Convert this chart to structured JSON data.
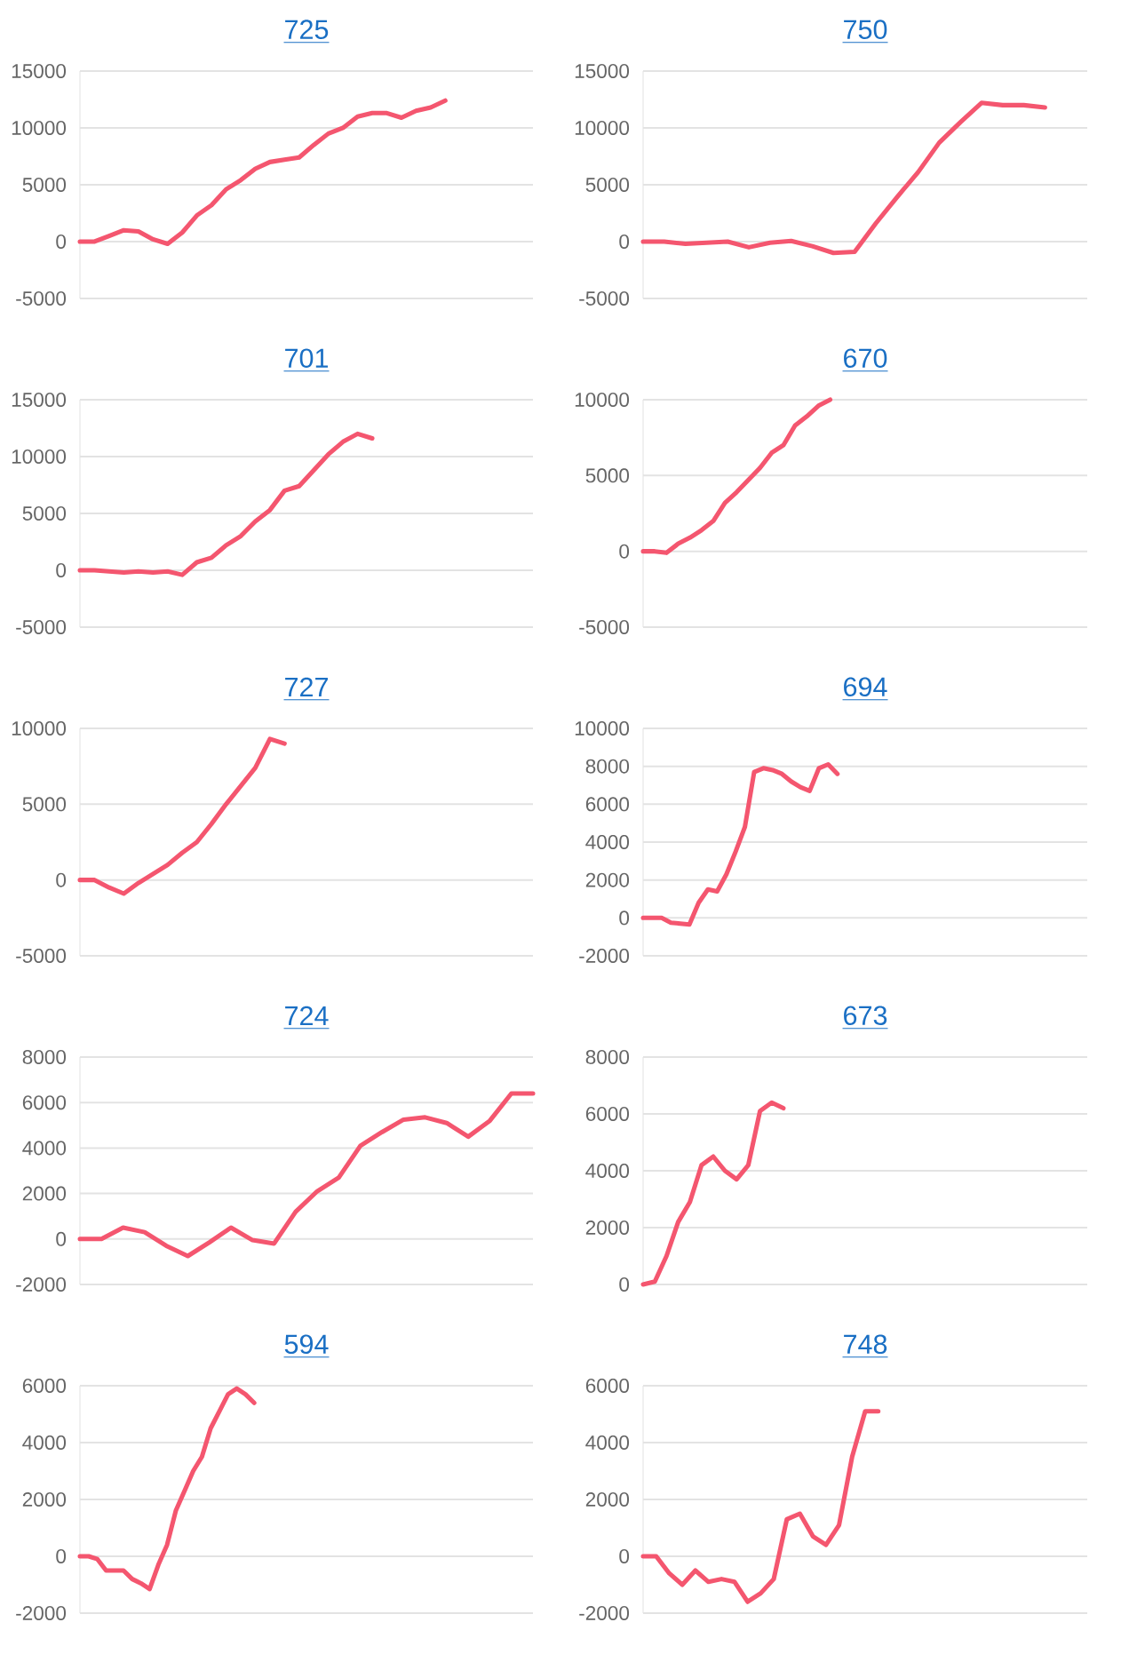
{
  "chart_data": [
    {
      "type": "line",
      "title": "725",
      "color": "#f4566f",
      "grid": "y",
      "tick_labels": "y",
      "ylim": [
        -5000,
        15000
      ],
      "yticks": [
        -5000,
        0,
        5000,
        10000,
        15000
      ],
      "categories": [
        null,
        null,
        null,
        null,
        null,
        null,
        null,
        null,
        null,
        null,
        null,
        null,
        null,
        null,
        null,
        null,
        null,
        null,
        null,
        null,
        null,
        null,
        null,
        null,
        null,
        null,
        null,
        null,
        null,
        null,
        null,
        null
      ],
      "values": [
        0,
        0,
        500,
        1000,
        900,
        200,
        -200,
        800,
        2300,
        3200,
        4600,
        5400,
        6400,
        7000,
        7200,
        7400,
        8500,
        9500,
        10000,
        11000,
        11300,
        11300,
        10900,
        11500,
        11800,
        12400,
        null,
        null,
        null,
        null,
        null,
        null
      ]
    },
    {
      "type": "line",
      "title": "750",
      "color": "#f4566f",
      "grid": "y",
      "tick_labels": "y",
      "ylim": [
        -5000,
        15000
      ],
      "yticks": [
        -5000,
        0,
        5000,
        10000,
        15000
      ],
      "categories": [
        null,
        null,
        null,
        null,
        null,
        null,
        null,
        null,
        null,
        null,
        null,
        null,
        null,
        null,
        null,
        null,
        null,
        null,
        null,
        null,
        null,
        null
      ],
      "values": [
        0,
        0,
        -200,
        -100,
        0,
        -500,
        -100,
        50,
        -400,
        -1000,
        -900,
        1600,
        3900,
        6100,
        8700,
        10500,
        12200,
        12000,
        12000,
        11800,
        null,
        null
      ]
    },
    {
      "type": "line",
      "title": "701",
      "color": "#f4566f",
      "grid": "y",
      "tick_labels": "y",
      "ylim": [
        -5000,
        15000
      ],
      "yticks": [
        -5000,
        0,
        5000,
        10000,
        15000
      ],
      "categories": [
        null,
        null,
        null,
        null,
        null,
        null,
        null,
        null,
        null,
        null,
        null,
        null,
        null,
        null,
        null,
        null,
        null,
        null,
        null,
        null,
        null,
        null,
        null,
        null,
        null,
        null,
        null,
        null,
        null,
        null,
        null,
        null
      ],
      "values": [
        0,
        0,
        -100,
        -200,
        -100,
        -200,
        -100,
        -400,
        700,
        1100,
        2200,
        3000,
        4300,
        5300,
        7000,
        7400,
        8800,
        10200,
        11300,
        12000,
        11600,
        null,
        null,
        null,
        null,
        null,
        null,
        null,
        null,
        null,
        null,
        null
      ]
    },
    {
      "type": "line",
      "title": "670",
      "color": "#f4566f",
      "grid": "y",
      "tick_labels": "y",
      "ylim": [
        -5000,
        10000
      ],
      "yticks": [
        -5000,
        0,
        5000,
        10000
      ],
      "categories": [
        null,
        null,
        null,
        null,
        null,
        null,
        null,
        null,
        null,
        null,
        null,
        null,
        null,
        null,
        null,
        null,
        null,
        null,
        null,
        null,
        null,
        null,
        null,
        null,
        null,
        null,
        null,
        null,
        null,
        null,
        null,
        null,
        null,
        null,
        null,
        null,
        null,
        null,
        null
      ],
      "values": [
        0,
        0,
        -100,
        500,
        900,
        1400,
        2000,
        3200,
        3900,
        4700,
        5500,
        6500,
        7000,
        8300,
        8900,
        9600,
        10000,
        null,
        null,
        null,
        null,
        null,
        null,
        null,
        null,
        null,
        null,
        null,
        null,
        null,
        null,
        null,
        null,
        null,
        null,
        null,
        null,
        null,
        null
      ]
    },
    {
      "type": "line",
      "title": "727",
      "color": "#f4566f",
      "grid": "y",
      "tick_labels": "y",
      "ylim": [
        -5000,
        10000
      ],
      "yticks": [
        -5000,
        0,
        5000,
        10000
      ],
      "categories": [
        null,
        null,
        null,
        null,
        null,
        null,
        null,
        null,
        null,
        null,
        null,
        null,
        null,
        null,
        null,
        null,
        null,
        null,
        null,
        null,
        null,
        null,
        null,
        null,
        null,
        null,
        null,
        null,
        null,
        null,
        null,
        null
      ],
      "values": [
        0,
        0,
        -500,
        -900,
        -200,
        400,
        1000,
        1800,
        2500,
        3700,
        5000,
        6200,
        7400,
        9300,
        9000,
        null,
        null,
        null,
        null,
        null,
        null,
        null,
        null,
        null,
        null,
        null,
        null,
        null,
        null,
        null,
        null,
        null
      ]
    },
    {
      "type": "line",
      "title": "694",
      "color": "#f4566f",
      "grid": "y",
      "tick_labels": "y",
      "ylim": [
        -2000,
        10000
      ],
      "yticks": [
        -2000,
        0,
        2000,
        4000,
        6000,
        8000,
        10000
      ],
      "categories": [
        null,
        null,
        null,
        null,
        null,
        null,
        null,
        null,
        null,
        null,
        null,
        null,
        null,
        null,
        null,
        null,
        null,
        null,
        null,
        null,
        null,
        null,
        null,
        null,
        null,
        null,
        null,
        null,
        null,
        null,
        null,
        null,
        null,
        null,
        null,
        null,
        null,
        null,
        null,
        null,
        null,
        null,
        null,
        null,
        null,
        null,
        null,
        null,
        null
      ],
      "values": [
        0,
        0,
        0,
        -250,
        -300,
        -350,
        800,
        1500,
        1400,
        2300,
        3500,
        4800,
        7700,
        7900,
        7800,
        7600,
        7200,
        6900,
        6700,
        7900,
        8100,
        7600,
        null,
        null,
        null,
        null,
        null,
        null,
        null,
        null,
        null,
        null,
        null,
        null,
        null,
        null,
        null,
        null,
        null,
        null,
        null,
        null,
        null,
        null,
        null,
        null,
        null,
        null,
        null
      ]
    },
    {
      "type": "line",
      "title": "724",
      "color": "#f4566f",
      "grid": "y",
      "tick_labels": "y",
      "ylim": [
        -2000,
        8000
      ],
      "yticks": [
        -2000,
        0,
        2000,
        4000,
        6000,
        8000
      ],
      "categories": [
        null,
        null,
        null,
        null,
        null,
        null,
        null,
        null,
        null,
        null,
        null,
        null,
        null,
        null,
        null,
        null,
        null,
        null,
        null,
        null,
        null,
        null
      ],
      "values": [
        0,
        0,
        500,
        300,
        -300,
        -750,
        -150,
        500,
        -50,
        -200,
        1200,
        2100,
        2700,
        4100,
        4700,
        5250,
        5350,
        5100,
        4500,
        5200,
        6400,
        6400
      ]
    },
    {
      "type": "line",
      "title": "673",
      "color": "#f4566f",
      "grid": "y",
      "tick_labels": "y",
      "ylim": [
        0,
        8000
      ],
      "yticks": [
        0,
        2000,
        4000,
        6000,
        8000
      ],
      "categories": [
        null,
        null,
        null,
        null,
        null,
        null,
        null,
        null,
        null,
        null,
        null,
        null,
        null,
        null,
        null,
        null,
        null,
        null,
        null,
        null,
        null,
        null,
        null,
        null,
        null,
        null,
        null,
        null,
        null,
        null,
        null,
        null,
        null,
        null,
        null,
        null,
        null,
        null,
        null
      ],
      "values": [
        0,
        100,
        1000,
        2200,
        2900,
        4200,
        4500,
        4000,
        3700,
        4200,
        6100,
        6400,
        6200,
        null,
        null,
        null,
        null,
        null,
        null,
        null,
        null,
        null,
        null,
        null,
        null,
        null,
        null,
        null,
        null,
        null,
        null,
        null,
        null,
        null,
        null,
        null,
        null,
        null,
        null
      ]
    },
    {
      "type": "line",
      "title": "594",
      "color": "#f4566f",
      "grid": "y",
      "tick_labels": "y",
      "ylim": [
        -2000,
        6000
      ],
      "yticks": [
        -2000,
        0,
        2000,
        4000,
        6000
      ],
      "categories": [
        null,
        null,
        null,
        null,
        null,
        null,
        null,
        null,
        null,
        null,
        null,
        null,
        null,
        null,
        null,
        null,
        null,
        null,
        null,
        null,
        null,
        null,
        null,
        null,
        null,
        null,
        null,
        null,
        null,
        null,
        null,
        null,
        null,
        null,
        null,
        null,
        null,
        null,
        null,
        null,
        null,
        null,
        null,
        null,
        null,
        null,
        null,
        null,
        null,
        null,
        null,
        null,
        null
      ],
      "values": [
        0,
        0,
        -100,
        -500,
        -500,
        -500,
        -800,
        -950,
        -1150,
        -300,
        400,
        1600,
        2300,
        3000,
        3500,
        4500,
        5100,
        5700,
        5900,
        5700,
        5400,
        null,
        null,
        null,
        null,
        null,
        null,
        null,
        null,
        null,
        null,
        null,
        null,
        null,
        null,
        null,
        null,
        null,
        null,
        null,
        null,
        null,
        null,
        null,
        null,
        null,
        null,
        null,
        null,
        null,
        null,
        null,
        null
      ]
    },
    {
      "type": "line",
      "title": "748",
      "color": "#f4566f",
      "grid": "y",
      "tick_labels": "y",
      "ylim": [
        -2000,
        6000
      ],
      "yticks": [
        -2000,
        0,
        2000,
        4000,
        6000
      ],
      "categories": [
        null,
        null,
        null,
        null,
        null,
        null,
        null,
        null,
        null,
        null,
        null,
        null,
        null,
        null,
        null,
        null,
        null,
        null,
        null,
        null,
        null,
        null,
        null,
        null,
        null,
        null,
        null,
        null,
        null,
        null,
        null,
        null,
        null,
        null,
        null
      ],
      "values": [
        0,
        0,
        -600,
        -1000,
        -500,
        -900,
        -800,
        -900,
        -1600,
        -1300,
        -800,
        1300,
        1500,
        700,
        400,
        1100,
        3500,
        5100,
        5100,
        null,
        null,
        null,
        null,
        null,
        null,
        null,
        null,
        null,
        null,
        null,
        null,
        null,
        null,
        null,
        null
      ]
    }
  ]
}
